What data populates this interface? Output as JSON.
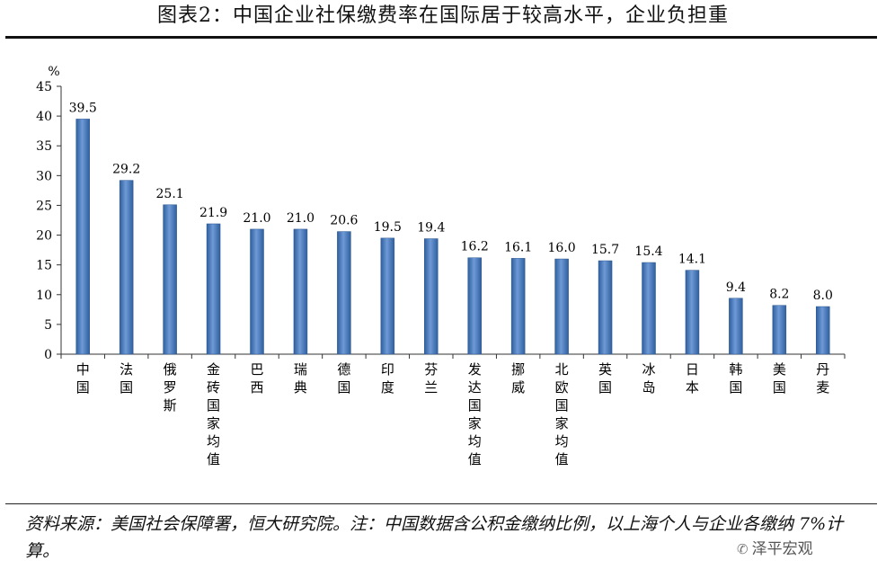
{
  "title": "图表2：中国企业社保缴费率在国际居于较高水平，企业负担重",
  "source_note": "资料来源：美国社会保障署，恒大研究院。注：中国数据含公积金缴纳比例，以上海个人与企业各缴纳 7%计算。",
  "watermark": {
    "text": "泽平宏观",
    "icon": "wechat-icon"
  },
  "chart_data": {
    "type": "bar",
    "ylabel": "%",
    "ylim": [
      0,
      45
    ],
    "yticks": [
      0,
      5,
      10,
      15,
      20,
      25,
      30,
      35,
      40,
      45
    ],
    "categories": [
      "中国",
      "法国",
      "俄罗斯",
      "金砖国家均值",
      "巴西",
      "瑞典",
      "德国",
      "印度",
      "芬兰",
      "发达国家均值",
      "挪威",
      "北欧国家均值",
      "英国",
      "冰岛",
      "日本",
      "韩国",
      "美国",
      "丹麦"
    ],
    "values": [
      39.5,
      29.2,
      25.1,
      21.9,
      21.0,
      21.0,
      20.6,
      19.5,
      19.4,
      16.2,
      16.1,
      16.0,
      15.7,
      15.4,
      14.1,
      9.4,
      8.2,
      8.0
    ],
    "value_labels": [
      "39.5",
      "29.2",
      "25.1",
      "21.9",
      "21.0",
      "21.0",
      "20.6",
      "19.5",
      "19.4",
      "16.2",
      "16.1",
      "16.0",
      "15.7",
      "15.4",
      "14.1",
      "9.4",
      "8.2",
      "8.0"
    ],
    "bar_color": "#4a7ebb",
    "grid": false,
    "legend": false
  }
}
